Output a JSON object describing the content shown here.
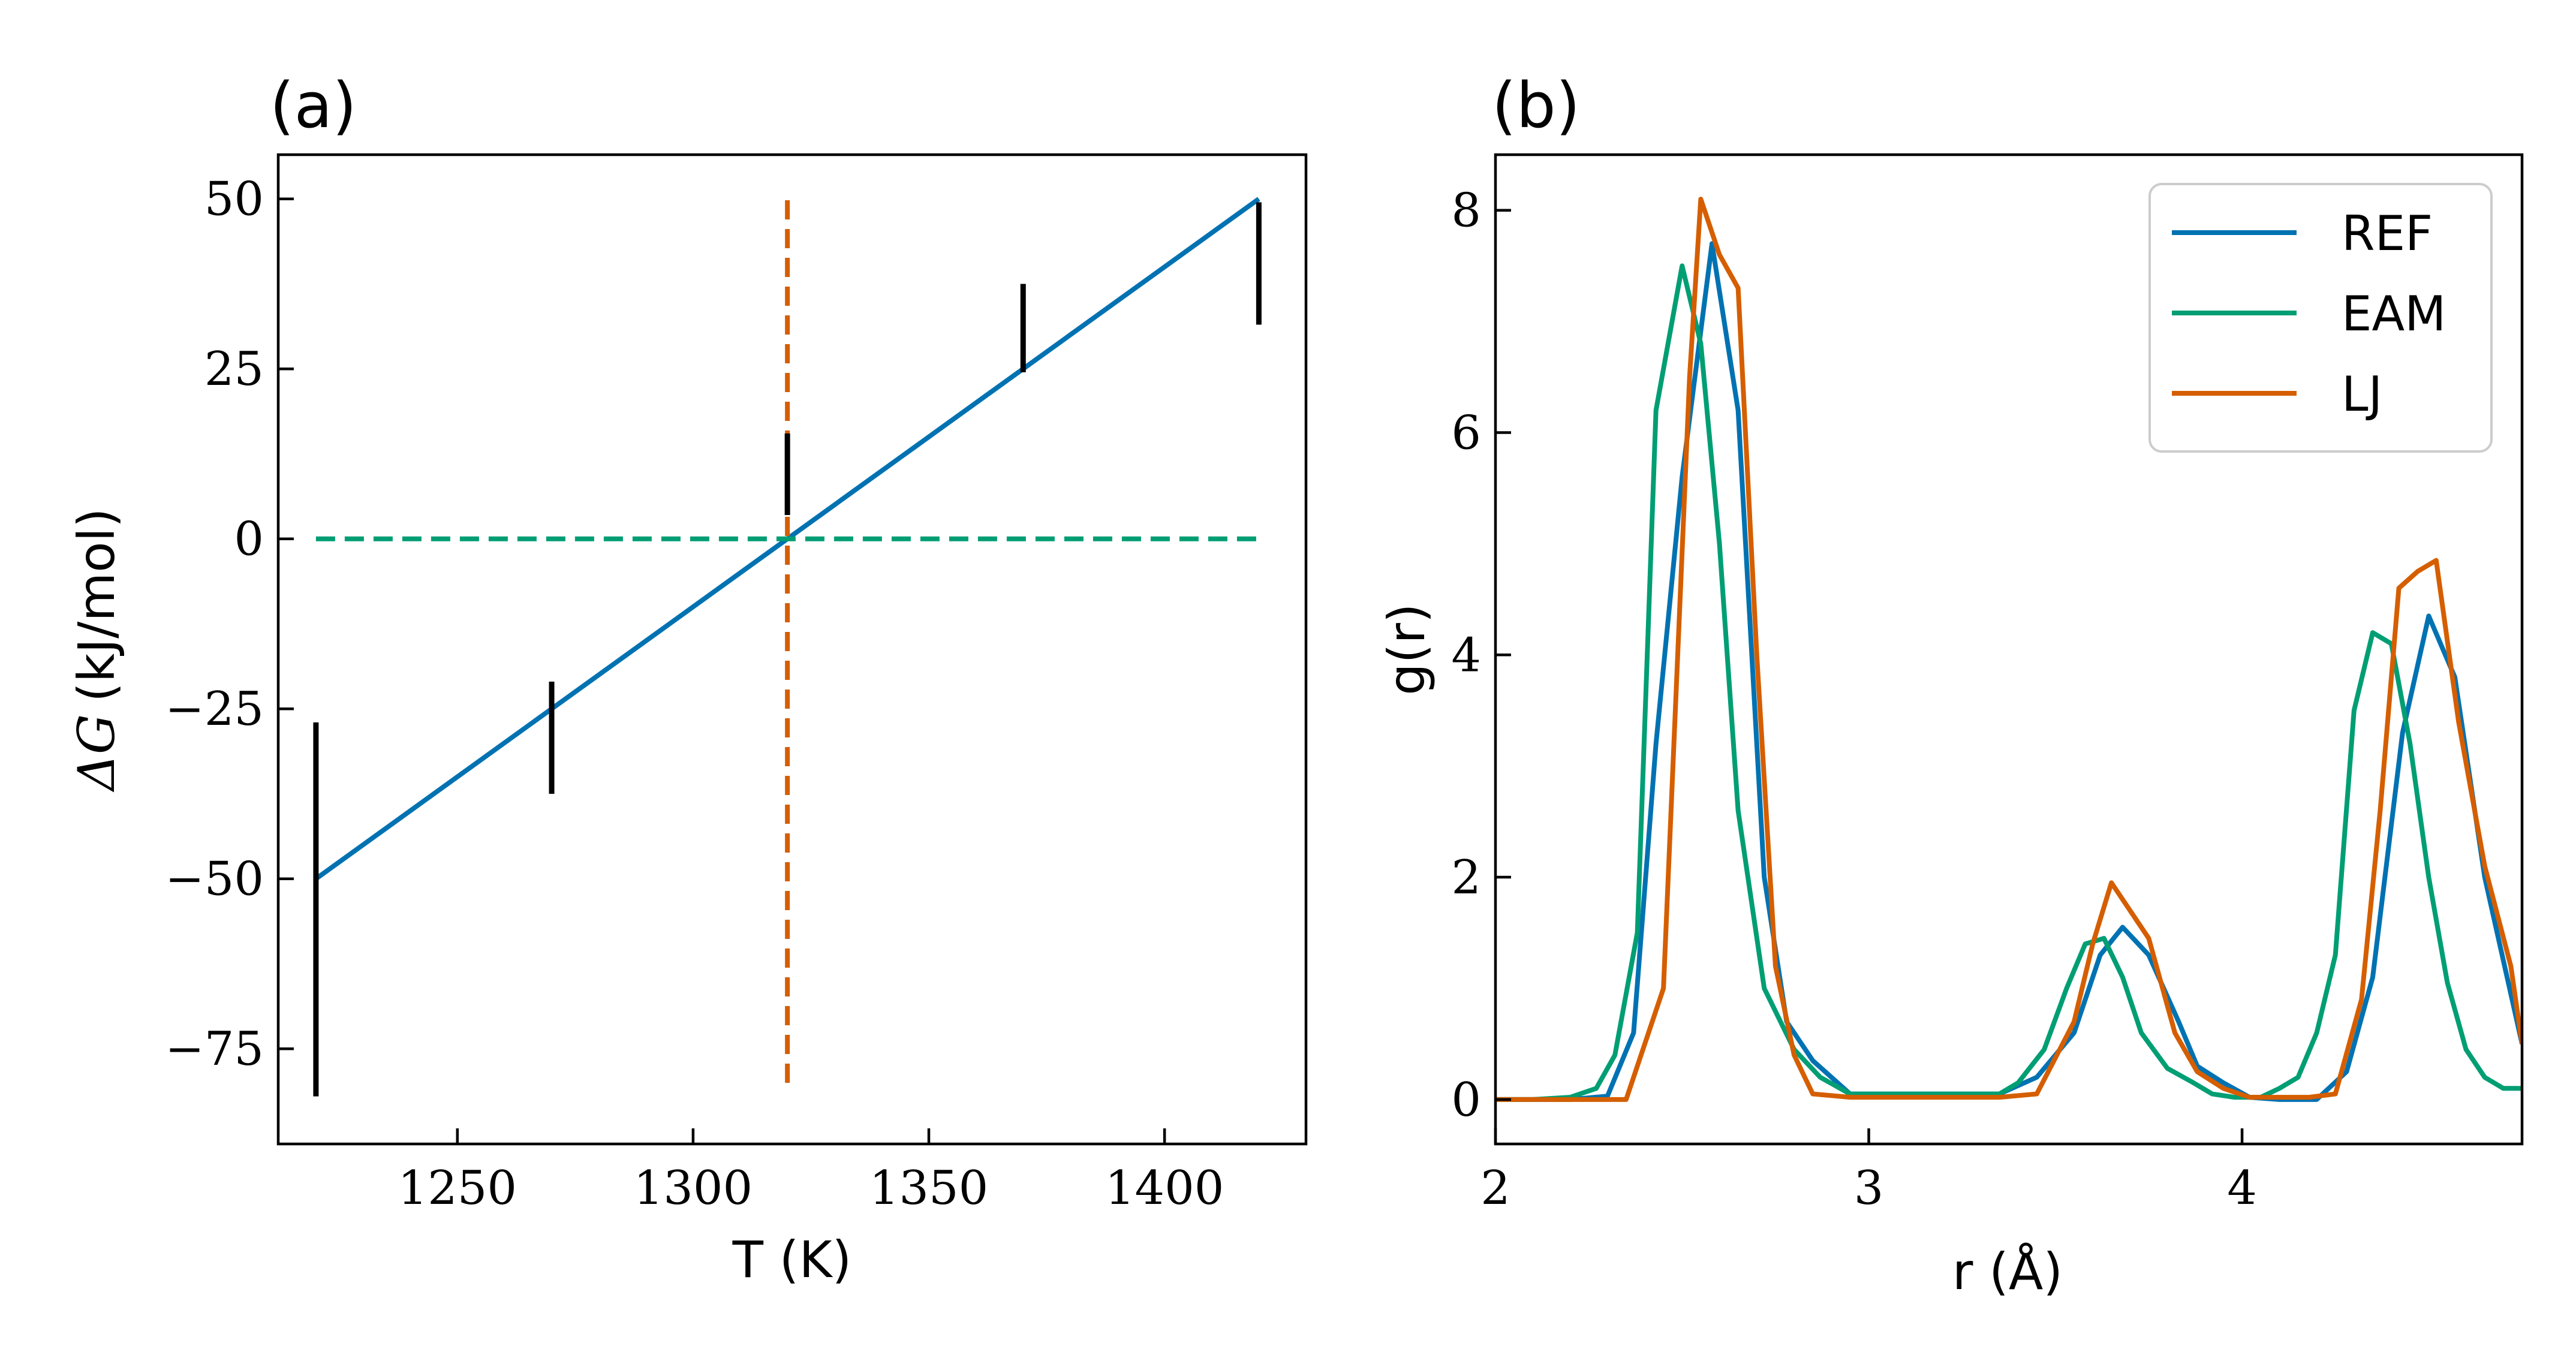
{
  "colors": {
    "blue": "#0072b2",
    "green": "#009e73",
    "orange": "#d55e00",
    "black": "#000000"
  },
  "chart_data": [
    {
      "type": "line",
      "panel_label": "(a)",
      "xlabel": "T (K)",
      "ylabel_symbol": "ΔG",
      "ylabel_unit": "(kJ/mol)",
      "xlim": [
        1212,
        1430
      ],
      "ylim": [
        -89,
        56.5
      ],
      "xticks": [
        1250,
        1300,
        1350,
        1400
      ],
      "yticks": [
        -75,
        -50,
        -25,
        0,
        25,
        50
      ],
      "ytick_labels": [
        "−75",
        "−50",
        "−25",
        "0",
        "25",
        "50"
      ],
      "grid": false,
      "series": [
        {
          "color": "blue",
          "style": "solid",
          "x": [
            1220,
            1420
          ],
          "y": [
            -50,
            50
          ]
        },
        {
          "color": "green",
          "style": "dashed",
          "x": [
            1220,
            1420
          ],
          "y": [
            0,
            0
          ]
        },
        {
          "color": "orange",
          "style": "dashed",
          "x": [
            1320,
            1320
          ],
          "y": [
            -80,
            50
          ]
        }
      ],
      "error_bars": [
        {
          "x": 1220,
          "y_low": -82,
          "y_high": -27
        },
        {
          "x": 1270,
          "y_low": -37.5,
          "y_high": -21
        },
        {
          "x": 1320,
          "y_low": 3.5,
          "y_high": 15.5
        },
        {
          "x": 1370,
          "y_low": 24.5,
          "y_high": 37.5
        },
        {
          "x": 1420,
          "y_low": 31.5,
          "y_high": 49.5
        }
      ]
    },
    {
      "type": "line",
      "panel_label": "(b)",
      "xlabel": "r (Å)",
      "ylabel": "g(r)",
      "xlim": [
        2,
        4.75
      ],
      "ylim": [
        -0.4,
        8.5
      ],
      "xticks": [
        2,
        3,
        4
      ],
      "yticks": [
        0,
        2,
        4,
        6,
        8
      ],
      "grid": false,
      "legend_position": "top-right",
      "series": [
        {
          "name": "REF",
          "color": "blue",
          "x": [
            2.0,
            2.1,
            2.2,
            2.3,
            2.37,
            2.43,
            2.5,
            2.58,
            2.65,
            2.72,
            2.78,
            2.85,
            2.95,
            3.05,
            3.15,
            3.25,
            3.35,
            3.45,
            3.55,
            3.62,
            3.68,
            3.75,
            3.83,
            3.88,
            3.95,
            4.02,
            4.1,
            4.2,
            4.28,
            4.35,
            4.43,
            4.5,
            4.57,
            4.65,
            4.72,
            4.75
          ],
          "y": [
            0,
            0,
            0,
            0.03,
            0.6,
            3.2,
            5.6,
            7.7,
            6.2,
            2.0,
            0.7,
            0.35,
            0.05,
            0.05,
            0.05,
            0.05,
            0.05,
            0.2,
            0.6,
            1.3,
            1.55,
            1.3,
            0.7,
            0.3,
            0.15,
            0.02,
            0,
            0,
            0.25,
            1.1,
            3.3,
            4.35,
            3.8,
            2.0,
            0.95,
            0.5
          ]
        },
        {
          "name": "EAM",
          "color": "green",
          "x": [
            2.0,
            2.1,
            2.2,
            2.27,
            2.32,
            2.38,
            2.43,
            2.5,
            2.55,
            2.6,
            2.65,
            2.72,
            2.8,
            2.87,
            2.95,
            3.05,
            3.15,
            3.25,
            3.35,
            3.4,
            3.47,
            3.53,
            3.58,
            3.63,
            3.68,
            3.73,
            3.8,
            3.87,
            3.92,
            3.98,
            4.05,
            4.1,
            4.15,
            4.2,
            4.25,
            4.3,
            4.35,
            4.4,
            4.45,
            4.5,
            4.55,
            4.6,
            4.65,
            4.7,
            4.75
          ],
          "y": [
            0,
            0,
            0.02,
            0.1,
            0.4,
            1.5,
            6.2,
            7.5,
            6.8,
            5.0,
            2.6,
            1.0,
            0.45,
            0.2,
            0.05,
            0.05,
            0.05,
            0.05,
            0.05,
            0.15,
            0.45,
            1.0,
            1.4,
            1.45,
            1.1,
            0.6,
            0.28,
            0.15,
            0.05,
            0.02,
            0.02,
            0.1,
            0.2,
            0.6,
            1.3,
            3.5,
            4.2,
            4.1,
            3.2,
            2.0,
            1.05,
            0.45,
            0.2,
            0.1,
            0.1
          ]
        },
        {
          "name": "LJ",
          "color": "orange",
          "x": [
            2.0,
            2.1,
            2.2,
            2.28,
            2.35,
            2.45,
            2.52,
            2.55,
            2.6,
            2.65,
            2.7,
            2.75,
            2.8,
            2.85,
            2.95,
            3.05,
            3.15,
            3.25,
            3.35,
            3.45,
            3.55,
            3.6,
            3.65,
            3.7,
            3.75,
            3.82,
            3.88,
            3.95,
            4.02,
            4.1,
            4.18,
            4.25,
            4.32,
            4.37,
            4.42,
            4.47,
            4.52,
            4.58,
            4.65,
            4.72,
            4.75
          ],
          "y": [
            0,
            0,
            0,
            0,
            0,
            1.0,
            6.5,
            8.1,
            7.6,
            7.3,
            4.0,
            1.2,
            0.4,
            0.05,
            0.02,
            0.02,
            0.02,
            0.02,
            0.02,
            0.05,
            0.7,
            1.4,
            1.95,
            1.7,
            1.45,
            0.6,
            0.25,
            0.1,
            0.02,
            0.02,
            0.02,
            0.05,
            0.9,
            2.6,
            4.6,
            4.75,
            4.85,
            3.4,
            2.1,
            1.2,
            0.5
          ]
        }
      ]
    }
  ]
}
